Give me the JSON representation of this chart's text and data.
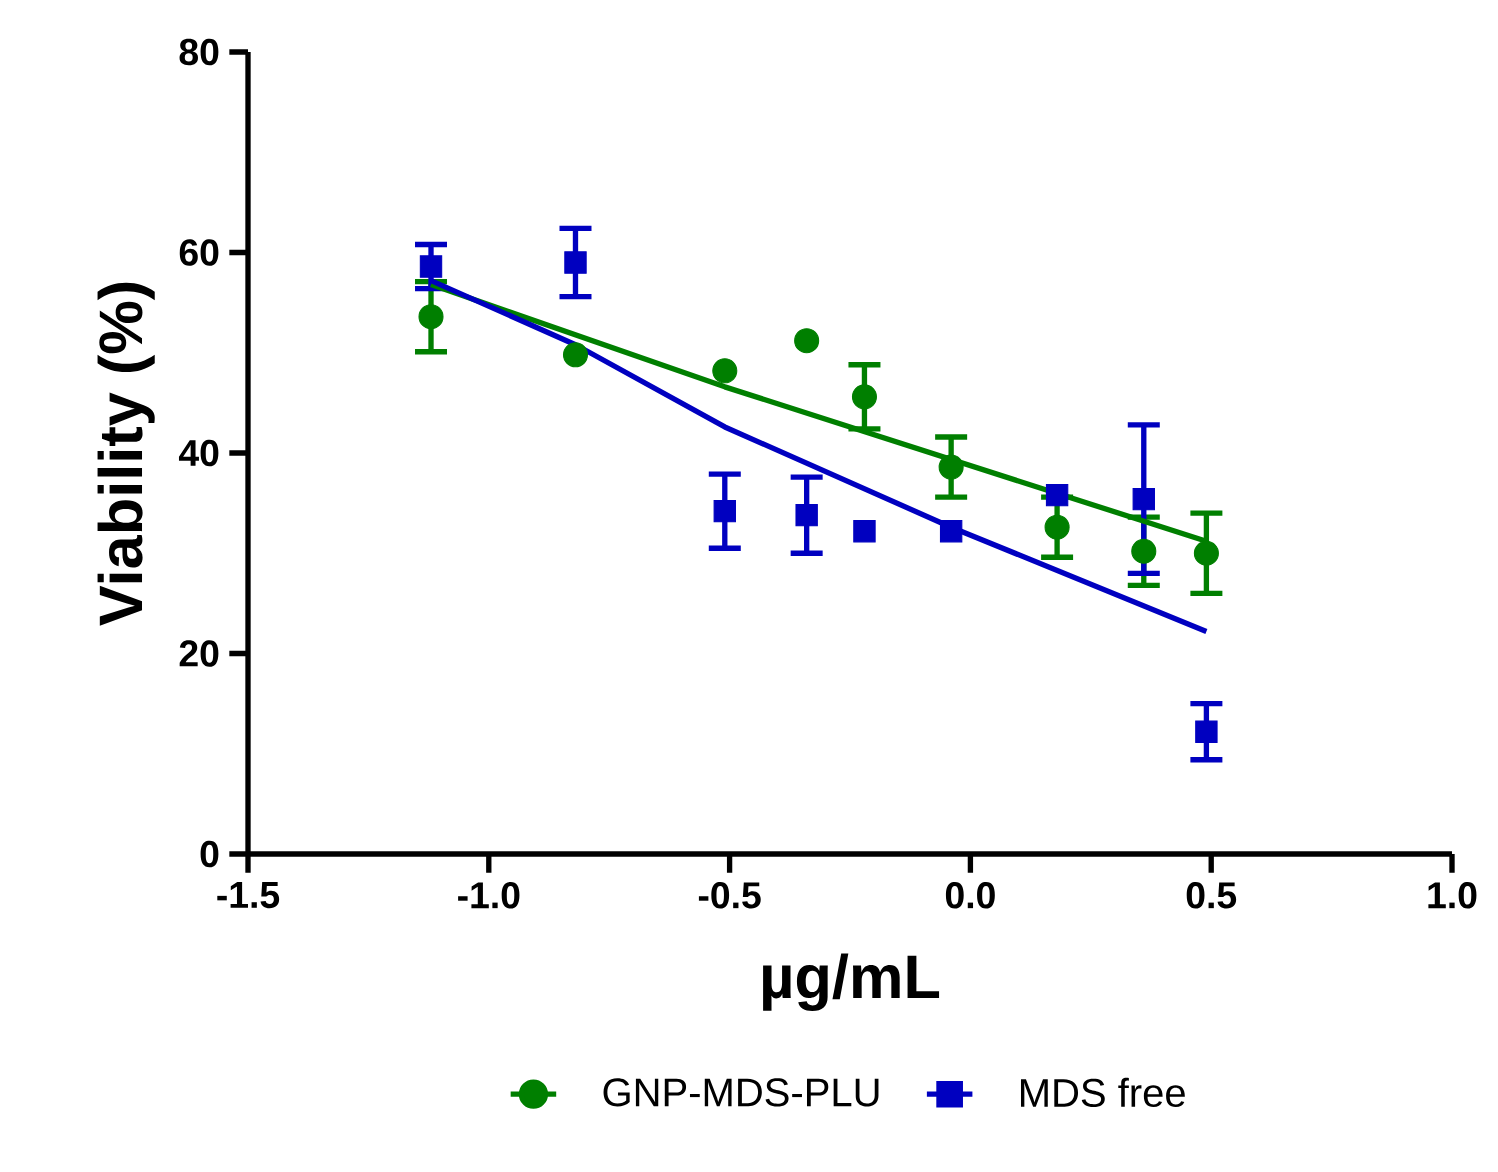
{
  "chart_data": {
    "type": "scatter",
    "xlabel": "µg/mL",
    "ylabel": "Viability (%)",
    "xlim": [
      -1.5,
      1.0
    ],
    "xticks": [
      {
        "value": -1.5,
        "label": "-1.5"
      },
      {
        "value": -1.0,
        "label": "-1.0"
      },
      {
        "value": -0.5,
        "label": "-0.5"
      },
      {
        "value": 0.0,
        "label": "0.0"
      },
      {
        "value": 0.5,
        "label": "0.5"
      },
      {
        "value": 1.0,
        "label": "1.0"
      }
    ],
    "ylim": [
      0,
      80
    ],
    "yticks": [
      0,
      20,
      40,
      60,
      80
    ],
    "grid": false,
    "legend": "bottom",
    "series": [
      {
        "name": "GNP-MDS-PLU",
        "color": "#007f00",
        "marker": "circle",
        "x": [
          -1.12,
          -0.82,
          -0.51,
          -0.34,
          -0.22,
          -0.04,
          0.18,
          0.36,
          0.49
        ],
        "values": [
          53.6,
          49.8,
          48.2,
          51.2,
          45.6,
          38.6,
          32.6,
          30.2,
          30.0
        ],
        "errors": [
          3.5,
          null,
          null,
          null,
          3.2,
          3.0,
          3.0,
          3.4,
          4.0
        ]
      },
      {
        "name": "MDS free",
        "color": "#0000c0",
        "marker": "square",
        "x": [
          -1.12,
          -0.82,
          -0.51,
          -0.34,
          -0.22,
          -0.04,
          0.18,
          0.36,
          0.49
        ],
        "values": [
          58.6,
          59.0,
          34.2,
          33.8,
          32.2,
          32.2,
          35.8,
          35.4,
          12.2
        ],
        "errors": [
          2.2,
          3.4,
          3.7,
          3.8,
          null,
          null,
          null,
          7.4,
          2.8
        ]
      },
      {
        "type": "line",
        "color": "#007f00",
        "marker": "none",
        "x": [
          -1.12,
          -0.51,
          0.49
        ],
        "values": [
          56.8,
          46.6,
          31.2
        ]
      },
      {
        "type": "line",
        "color": "#0000c0",
        "marker": "none",
        "x": [
          -1.12,
          -0.82,
          -0.51,
          -0.04,
          0.49
        ],
        "values": [
          57.2,
          50.8,
          42.6,
          32.6,
          22.2
        ]
      }
    ]
  }
}
